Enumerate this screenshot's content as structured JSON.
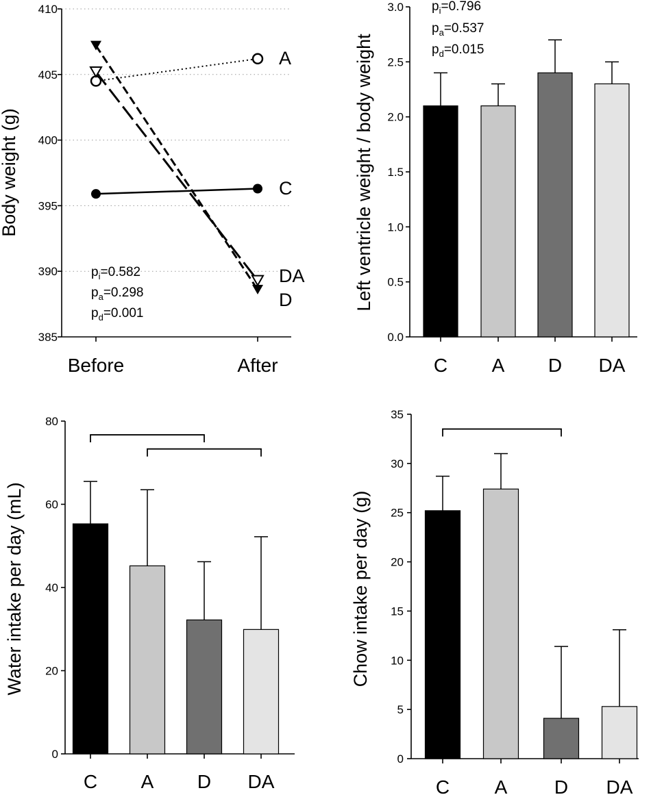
{
  "chart_data": [
    {
      "type": "line",
      "panel": "top-left",
      "x_categories": [
        "Before",
        "After"
      ],
      "ylabel": "Body weight (g)",
      "ylim": [
        385,
        410
      ],
      "y_ticks": [
        385,
        390,
        395,
        400,
        405,
        410
      ],
      "grid": "horizontal dotted",
      "series": [
        {
          "name": "C",
          "values": [
            395.9,
            396.3
          ],
          "marker": "filled-circle",
          "line": "solid"
        },
        {
          "name": "A",
          "values": [
            404.5,
            406.2
          ],
          "marker": "open-circle",
          "line": "dotted"
        },
        {
          "name": "D",
          "values": [
            407.2,
            388.6
          ],
          "marker": "filled-triangle-down",
          "line": "short-dash"
        },
        {
          "name": "DA",
          "values": [
            405.2,
            389.3
          ],
          "marker": "open-triangle-down",
          "line": "long-dash"
        }
      ],
      "stats": [
        {
          "sym": "p",
          "sub": "i",
          "text": "=0.582"
        },
        {
          "sym": "p",
          "sub": "a",
          "text": "=0.298"
        },
        {
          "sym": "p",
          "sub": "d",
          "text": "=0.001"
        }
      ]
    },
    {
      "type": "bar",
      "panel": "top-right",
      "categories": [
        "C",
        "A",
        "D",
        "DA"
      ],
      "values": [
        2.1,
        2.1,
        2.4,
        2.3
      ],
      "errors": [
        0.3,
        0.2,
        0.3,
        0.2
      ],
      "colors": [
        "#000000",
        "#c8c8c8",
        "#707070",
        "#e4e4e4"
      ],
      "ylabel": "Left ventricle weight / body weight",
      "ylim": [
        0,
        3.0
      ],
      "y_ticks": [
        "0.0",
        "0.5",
        "1.0",
        "1.5",
        "2.0",
        "2.5",
        "3.0"
      ],
      "stats": [
        {
          "sym": "p",
          "sub": "i",
          "text": "=0.796"
        },
        {
          "sym": "p",
          "sub": "a",
          "text": "=0.537"
        },
        {
          "sym": "p",
          "sub": "d",
          "text": "=0.015"
        }
      ]
    },
    {
      "type": "bar",
      "panel": "bottom-left",
      "categories": [
        "C",
        "A",
        "D",
        "DA"
      ],
      "values": [
        55.3,
        45.2,
        32.2,
        29.9
      ],
      "errors": [
        10.2,
        18.3,
        14.0,
        22.3
      ],
      "colors": [
        "#000000",
        "#c8c8c8",
        "#707070",
        "#e4e4e4"
      ],
      "ylabel": "Water intake per day (mL)",
      "ylim": [
        0,
        80
      ],
      "y_ticks": [
        "0",
        "20",
        "40",
        "60",
        "80"
      ],
      "brackets": [
        {
          "from": "C",
          "to": "D",
          "level": 76.7
        },
        {
          "from": "A",
          "to": "DA",
          "level": 73.3
        }
      ]
    },
    {
      "type": "bar",
      "panel": "bottom-right",
      "categories": [
        "C",
        "A",
        "D",
        "DA"
      ],
      "values": [
        25.2,
        27.4,
        4.1,
        5.3
      ],
      "errors": [
        3.5,
        3.6,
        7.3,
        7.8
      ],
      "colors": [
        "#000000",
        "#c8c8c8",
        "#707070",
        "#e4e4e4"
      ],
      "ylabel": "Chow intake per day (g)",
      "ylim": [
        0,
        35
      ],
      "y_ticks": [
        "0",
        "5",
        "10",
        "15",
        "20",
        "25",
        "30",
        "35"
      ],
      "brackets": [
        {
          "from": "C",
          "to": "D",
          "level": 33.5
        }
      ]
    }
  ]
}
